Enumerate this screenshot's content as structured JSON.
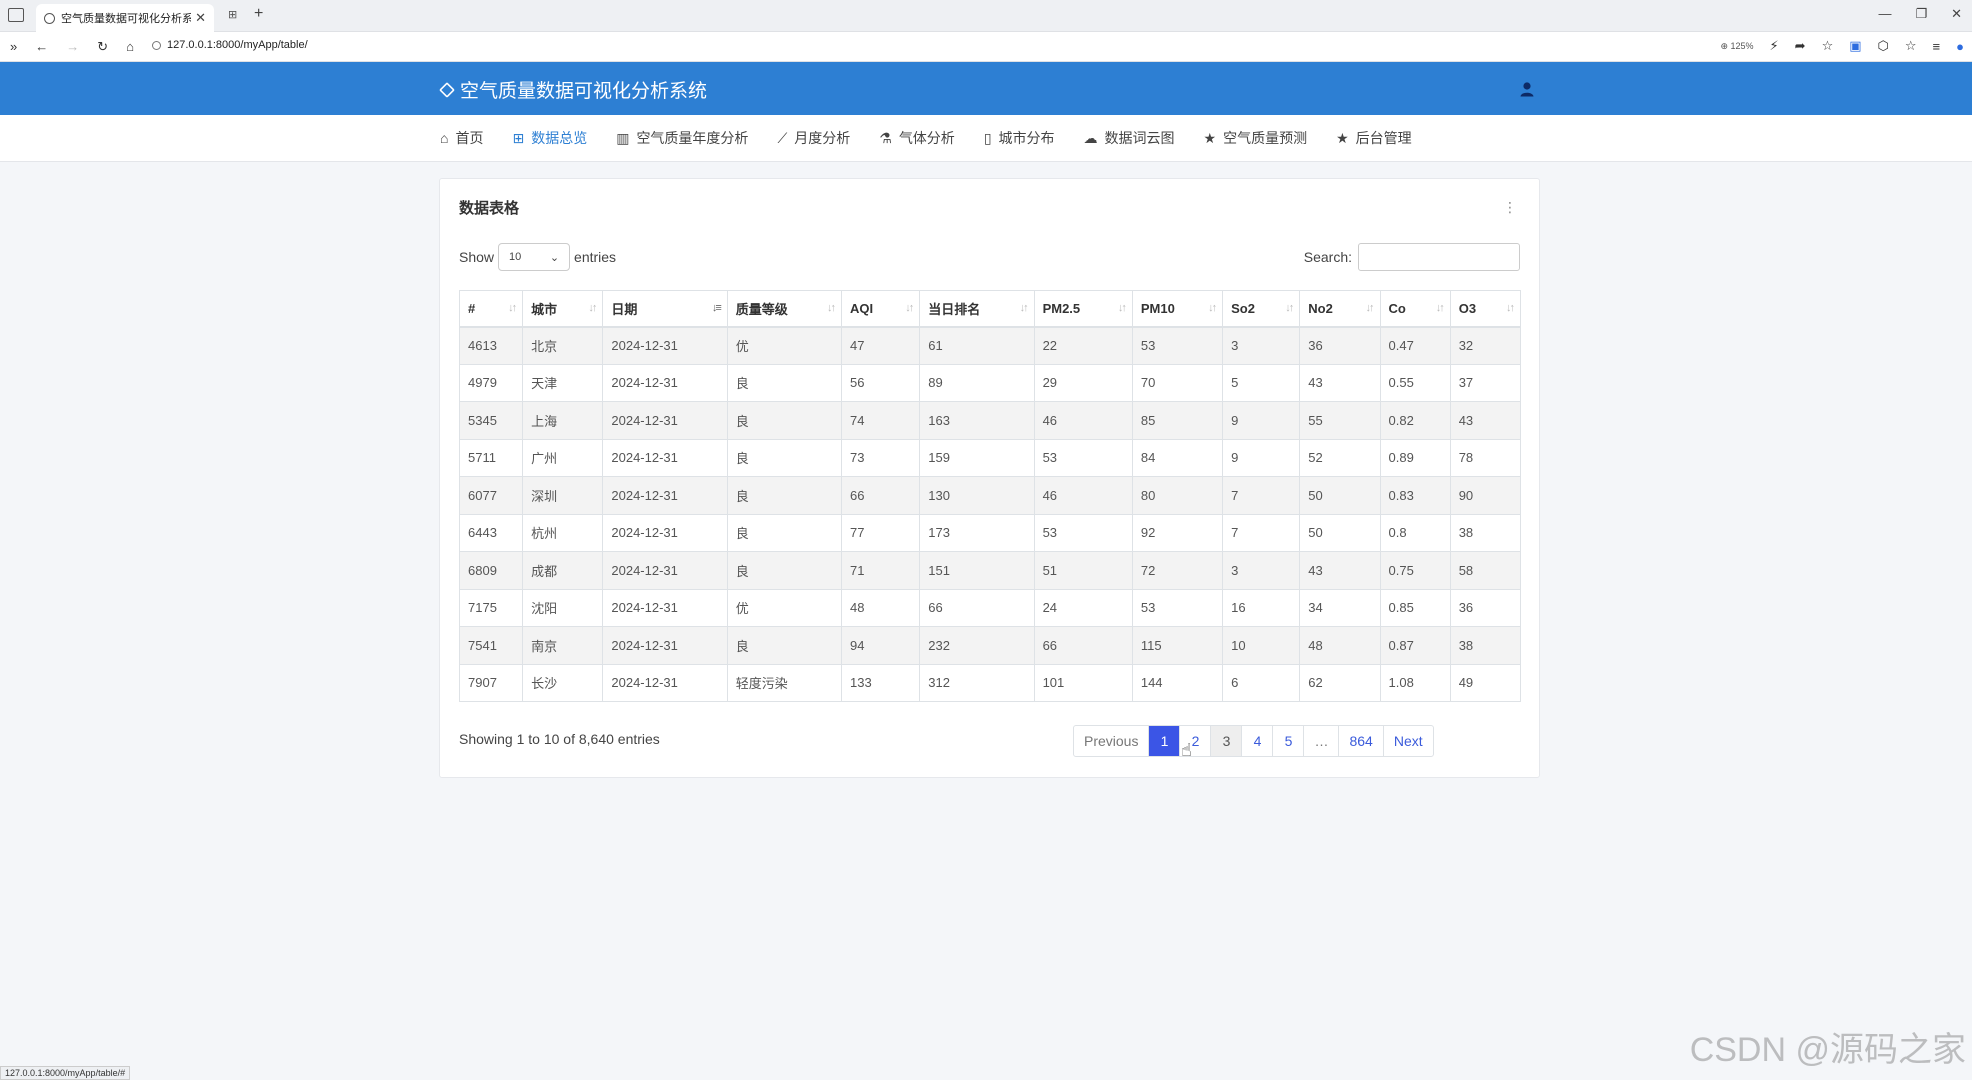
{
  "browser": {
    "tab_title": "空气质量数据可视化分析系统",
    "url": "127.0.0.1:8000/myApp/table/",
    "zoom": "125%",
    "status_url": "127.0.0.1:8000/myApp/table/#"
  },
  "header": {
    "brand": "空气质量数据可视化分析系统"
  },
  "nav": {
    "items": [
      {
        "label": "首页"
      },
      {
        "label": "数据总览"
      },
      {
        "label": "空气质量年度分析"
      },
      {
        "label": "月度分析"
      },
      {
        "label": "气体分析"
      },
      {
        "label": "城市分布"
      },
      {
        "label": "数据词云图"
      },
      {
        "label": "空气质量预测"
      },
      {
        "label": "后台管理"
      }
    ],
    "active_index": 1
  },
  "card": {
    "title": "数据表格",
    "show_label": "Show",
    "entries_label": "entries",
    "page_size": "10",
    "search_label": "Search:"
  },
  "table": {
    "headers": [
      "#",
      "城市",
      "日期",
      "质量等级",
      "AQI",
      "当日排名",
      "PM2.5",
      "PM10",
      "So2",
      "No2",
      "Co",
      "O3"
    ],
    "rows": [
      [
        "4613",
        "北京",
        "2024-12-31",
        "优",
        "47",
        "61",
        "22",
        "53",
        "3",
        "36",
        "0.47",
        "32"
      ],
      [
        "4979",
        "天津",
        "2024-12-31",
        "良",
        "56",
        "89",
        "29",
        "70",
        "5",
        "43",
        "0.55",
        "37"
      ],
      [
        "5345",
        "上海",
        "2024-12-31",
        "良",
        "74",
        "163",
        "46",
        "85",
        "9",
        "55",
        "0.82",
        "43"
      ],
      [
        "5711",
        "广州",
        "2024-12-31",
        "良",
        "73",
        "159",
        "53",
        "84",
        "9",
        "52",
        "0.89",
        "78"
      ],
      [
        "6077",
        "深圳",
        "2024-12-31",
        "良",
        "66",
        "130",
        "46",
        "80",
        "7",
        "50",
        "0.83",
        "90"
      ],
      [
        "6443",
        "杭州",
        "2024-12-31",
        "良",
        "77",
        "173",
        "53",
        "92",
        "7",
        "50",
        "0.8",
        "38"
      ],
      [
        "6809",
        "成都",
        "2024-12-31",
        "良",
        "71",
        "151",
        "51",
        "72",
        "3",
        "43",
        "0.75",
        "58"
      ],
      [
        "7175",
        "沈阳",
        "2024-12-31",
        "优",
        "48",
        "66",
        "24",
        "53",
        "16",
        "34",
        "0.85",
        "36"
      ],
      [
        "7541",
        "南京",
        "2024-12-31",
        "良",
        "94",
        "232",
        "66",
        "115",
        "10",
        "48",
        "0.87",
        "38"
      ],
      [
        "7907",
        "长沙",
        "2024-12-31",
        "轻度污染",
        "133",
        "312",
        "101",
        "144",
        "6",
        "62",
        "1.08",
        "49"
      ]
    ]
  },
  "pagination": {
    "info": "Showing 1 to 10 of 8,640 entries",
    "previous": "Previous",
    "next": "Next",
    "pages": [
      "1",
      "2",
      "3",
      "4",
      "5",
      "…",
      "864"
    ]
  },
  "watermark": "CSDN @源码之家",
  "colors": {
    "header_bg": "#2d7fd3",
    "active_page": "#3b55e6",
    "nav_active": "#2d7fd3"
  }
}
